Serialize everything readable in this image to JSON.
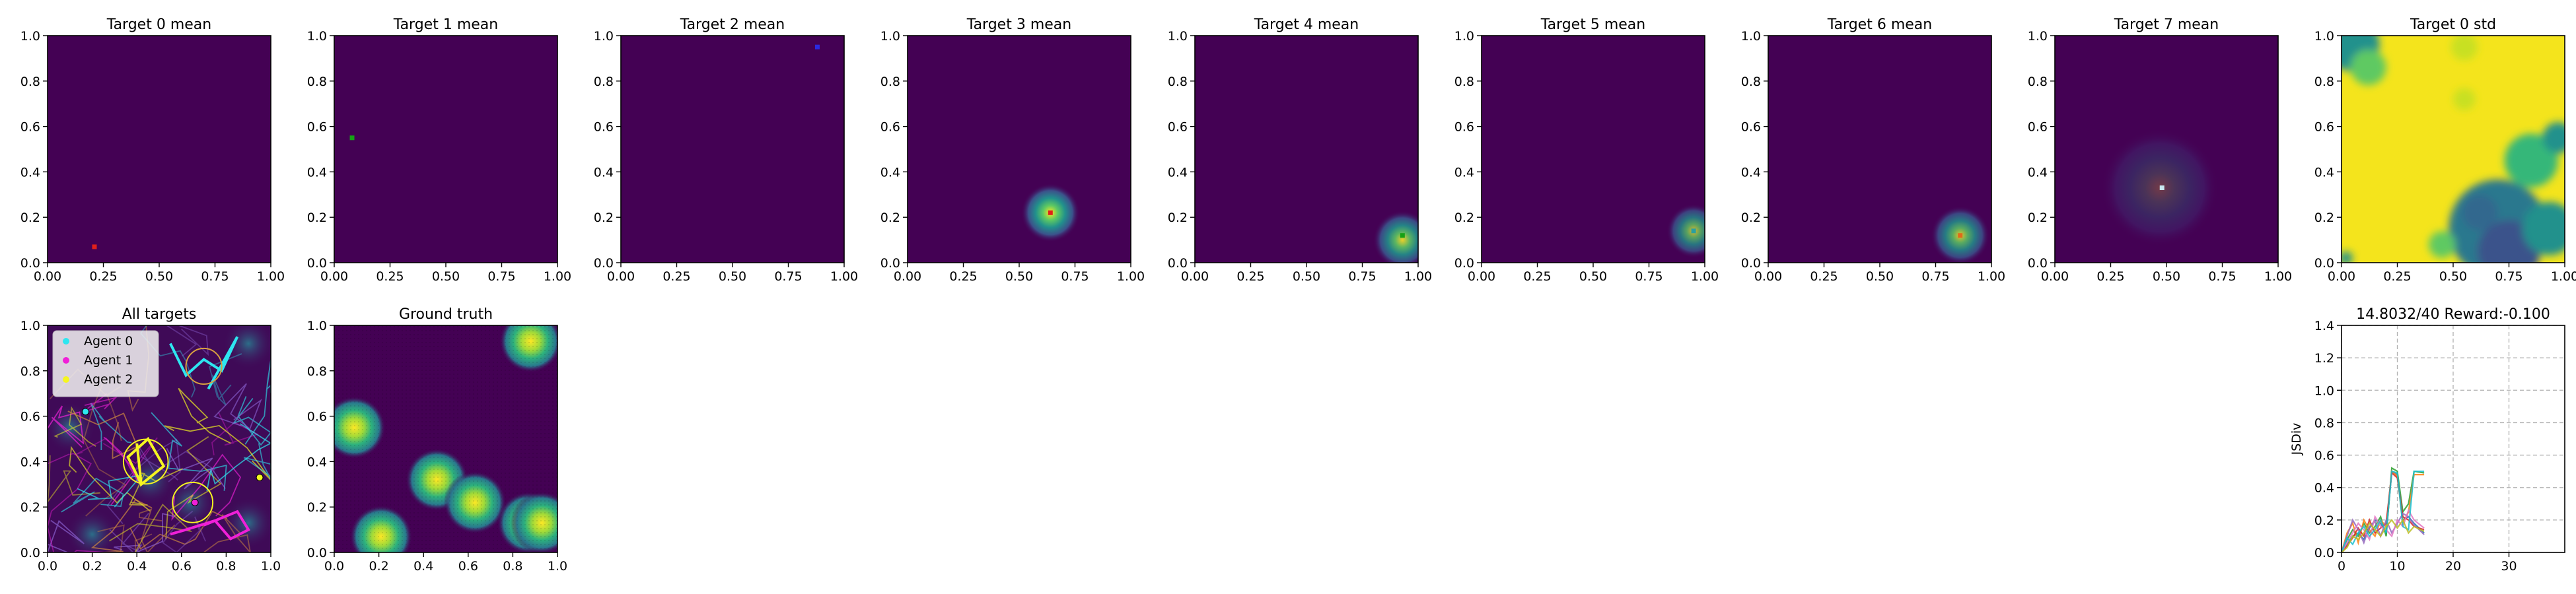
{
  "chart_data": [
    {
      "id": "t0",
      "type": "heatmap",
      "title": "Target 0 mean",
      "peak": null,
      "marker": [
        0.21,
        0.07
      ],
      "marker_color": "#e0201a",
      "xticks": [
        "0.00",
        "0.25",
        "0.50",
        "0.75",
        "1.00"
      ],
      "yticks": [
        "0.0",
        "0.2",
        "0.4",
        "0.6",
        "0.8",
        "1.0"
      ],
      "xlim": [
        0,
        1
      ],
      "ylim": [
        0,
        1
      ]
    },
    {
      "id": "t1",
      "type": "heatmap",
      "title": "Target 1 mean",
      "peak": null,
      "marker": [
        0.08,
        0.55
      ],
      "marker_color": "#16a016",
      "xticks": [
        "0.00",
        "0.25",
        "0.50",
        "0.75",
        "1.00"
      ],
      "yticks": [
        "0.0",
        "0.2",
        "0.4",
        "0.6",
        "0.8",
        "1.0"
      ],
      "xlim": [
        0,
        1
      ],
      "ylim": [
        0,
        1
      ]
    },
    {
      "id": "t2",
      "type": "heatmap",
      "title": "Target 2 mean",
      "peak": null,
      "marker": [
        0.88,
        0.95
      ],
      "marker_color": "#2a2ae0",
      "xticks": [
        "0.00",
        "0.25",
        "0.50",
        "0.75",
        "1.00"
      ],
      "yticks": [
        "0.0",
        "0.2",
        "0.4",
        "0.6",
        "0.8",
        "1.0"
      ],
      "xlim": [
        0,
        1
      ],
      "ylim": [
        0,
        1
      ]
    },
    {
      "id": "t3",
      "type": "heatmap",
      "title": "Target 3 mean",
      "peak": {
        "x": 0.64,
        "y": 0.22,
        "s": 0.06,
        "a": 1.0
      },
      "marker": [
        0.64,
        0.22
      ],
      "marker_color": "#e0201a",
      "xticks": [
        "0.00",
        "0.25",
        "0.50",
        "0.75",
        "1.00"
      ],
      "yticks": [
        "0.0",
        "0.2",
        "0.4",
        "0.6",
        "0.8",
        "1.0"
      ],
      "xlim": [
        0,
        1
      ],
      "ylim": [
        0,
        1
      ]
    },
    {
      "id": "t4",
      "type": "heatmap",
      "title": "Target 4 mean",
      "peak": {
        "x": 0.93,
        "y": 0.1,
        "s": 0.06,
        "a": 0.9
      },
      "marker": [
        0.93,
        0.12
      ],
      "marker_color": "#16a016",
      "xticks": [
        "0.00",
        "0.25",
        "0.50",
        "0.75",
        "1.00"
      ],
      "yticks": [
        "0.0",
        "0.2",
        "0.4",
        "0.6",
        "0.8",
        "1.0"
      ],
      "xlim": [
        0,
        1
      ],
      "ylim": [
        0,
        1
      ]
    },
    {
      "id": "t5",
      "type": "heatmap",
      "title": "Target 5 mean",
      "peak": {
        "x": 0.95,
        "y": 0.14,
        "s": 0.055,
        "a": 0.8
      },
      "marker": [
        0.95,
        0.14
      ],
      "marker_color": "#2aa0a0",
      "xticks": [
        "0.00",
        "0.25",
        "0.50",
        "0.75",
        "1.00"
      ],
      "yticks": [
        "0.0",
        "0.2",
        "0.4",
        "0.6",
        "0.8",
        "1.0"
      ],
      "xlim": [
        0,
        1
      ],
      "ylim": [
        0,
        1
      ]
    },
    {
      "id": "t6",
      "type": "heatmap",
      "title": "Target 6 mean",
      "peak": {
        "x": 0.86,
        "y": 0.12,
        "s": 0.06,
        "a": 0.85
      },
      "marker": [
        0.86,
        0.12
      ],
      "marker_color": "#e06a1a",
      "xticks": [
        "0.00",
        "0.25",
        "0.50",
        "0.75",
        "1.00"
      ],
      "yticks": [
        "0.0",
        "0.2",
        "0.4",
        "0.6",
        "0.8",
        "1.0"
      ],
      "xlim": [
        0,
        1
      ],
      "ylim": [
        0,
        1
      ]
    },
    {
      "id": "t7",
      "type": "heatmap",
      "title": "Target 7 mean",
      "peak": {
        "x": 0.47,
        "y": 0.33,
        "s": 0.12,
        "a": 0.25
      },
      "marker": [
        0.48,
        0.33
      ],
      "marker_color": "#c8e8f0",
      "xticks": [
        "0.00",
        "0.25",
        "0.50",
        "0.75",
        "1.00"
      ],
      "yticks": [
        "0.0",
        "0.2",
        "0.4",
        "0.6",
        "0.8",
        "1.0"
      ],
      "xlim": [
        0,
        1
      ],
      "ylim": [
        0,
        1
      ]
    },
    {
      "id": "std",
      "type": "heatmap",
      "title": "Target 0 std",
      "pattern": "std",
      "xticks": [
        "0.00",
        "0.25",
        "0.50",
        "0.75",
        "1.00"
      ],
      "yticks": [
        "0.0",
        "0.2",
        "0.4",
        "0.6",
        "0.8",
        "1.0"
      ],
      "xlim": [
        0,
        1
      ],
      "ylim": [
        0,
        1
      ]
    },
    {
      "id": "all",
      "type": "heatmap",
      "title": "All targets",
      "pattern": "all",
      "xticks": [
        "0.0",
        "0.2",
        "0.4",
        "0.6",
        "0.8",
        "1.0"
      ],
      "yticks": [
        "0.0",
        "0.2",
        "0.4",
        "0.6",
        "0.8",
        "1.0"
      ],
      "xlim": [
        0,
        1
      ],
      "ylim": [
        0,
        1
      ],
      "legend": [
        {
          "label": "Agent 0",
          "color": "#2ee6f0"
        },
        {
          "label": "Agent 1",
          "color": "#f020d8"
        },
        {
          "label": "Agent 2",
          "color": "#f5f520"
        }
      ],
      "agent_positions": [
        {
          "x": 0.17,
          "y": 0.62,
          "color": "#2ee6f0"
        },
        {
          "x": 0.66,
          "y": 0.22,
          "color": "#f020d8"
        },
        {
          "x": 0.95,
          "y": 0.33,
          "color": "#f5f520"
        }
      ]
    },
    {
      "id": "gt",
      "type": "heatmap",
      "title": "Ground truth",
      "pattern": "gt",
      "xticks": [
        "0.0",
        "0.2",
        "0.4",
        "0.6",
        "0.8",
        "1.0"
      ],
      "yticks": [
        "0.0",
        "0.2",
        "0.4",
        "0.6",
        "0.8",
        "1.0"
      ],
      "xlim": [
        0,
        1
      ],
      "ylim": [
        0,
        1
      ],
      "blobs": [
        {
          "x": 0.09,
          "y": 0.55
        },
        {
          "x": 0.21,
          "y": 0.07
        },
        {
          "x": 0.46,
          "y": 0.32
        },
        {
          "x": 0.63,
          "y": 0.22
        },
        {
          "x": 0.88,
          "y": 0.93
        },
        {
          "x": 0.87,
          "y": 0.13
        },
        {
          "x": 0.93,
          "y": 0.13
        }
      ]
    },
    {
      "id": "line",
      "type": "line",
      "title": "14.8032/40 Reward:-0.100",
      "ylabel": "JSDiv",
      "xlim": [
        0,
        40
      ],
      "ylim": [
        0,
        1.4
      ],
      "xticks": [
        "0",
        "10",
        "20",
        "30"
      ],
      "yticks": [
        "0.0",
        "0.2",
        "0.4",
        "0.6",
        "0.8",
        "1.0",
        "1.2",
        "1.4"
      ],
      "grid": true,
      "series": [
        {
          "color": "#1f77b4",
          "x": [
            0,
            1,
            2,
            3,
            4,
            5,
            6,
            7,
            8,
            9,
            10,
            11,
            12,
            13,
            14.8
          ],
          "y": [
            0,
            0.05,
            0.1,
            0.12,
            0.08,
            0.15,
            0.2,
            0.18,
            0.12,
            0.5,
            0.48,
            0.2,
            0.22,
            0.18,
            0.12
          ]
        },
        {
          "color": "#2ca02c",
          "x": [
            0,
            1,
            2,
            3,
            4,
            5,
            6,
            7,
            8,
            9,
            10,
            11,
            12,
            13,
            14.8
          ],
          "y": [
            0,
            0.08,
            0.14,
            0.1,
            0.18,
            0.12,
            0.16,
            0.22,
            0.1,
            0.52,
            0.5,
            0.25,
            0.3,
            0.5,
            0.49
          ]
        },
        {
          "color": "#ff7f0e",
          "x": [
            0,
            1,
            2,
            3,
            4,
            5,
            6,
            7,
            8,
            9,
            10,
            11,
            12,
            13,
            14.8
          ],
          "y": [
            0,
            0.12,
            0.18,
            0.06,
            0.2,
            0.14,
            0.1,
            0.2,
            0.16,
            0.5,
            0.47,
            0.18,
            0.25,
            0.48,
            0.48
          ]
        },
        {
          "color": "#d62728",
          "x": [
            0,
            1,
            2,
            3,
            4,
            5,
            6,
            7,
            8,
            9,
            10,
            11,
            12,
            13,
            14.8
          ],
          "y": [
            0,
            0.04,
            0.09,
            0.15,
            0.1,
            0.2,
            0.12,
            0.15,
            0.18,
            0.49,
            0.46,
            0.22,
            0.2,
            0.16,
            0.14
          ]
        },
        {
          "color": "#9467bd",
          "x": [
            0,
            1,
            2,
            3,
            4,
            5,
            6,
            7,
            8,
            9,
            10,
            11,
            12,
            13,
            14.8
          ],
          "y": [
            0,
            0.1,
            0.2,
            0.14,
            0.06,
            0.16,
            0.19,
            0.1,
            0.2,
            0.12,
            0.18,
            0.24,
            0.22,
            0.17,
            0.11
          ]
        },
        {
          "color": "#e377c2",
          "x": [
            0,
            1,
            2,
            3,
            4,
            5,
            6,
            7,
            8,
            9,
            10,
            11,
            12,
            13,
            14.8
          ],
          "y": [
            0,
            0.06,
            0.12,
            0.18,
            0.14,
            0.08,
            0.22,
            0.16,
            0.14,
            0.1,
            0.2,
            0.16,
            0.26,
            0.2,
            0.15
          ]
        },
        {
          "color": "#17becf",
          "x": [
            0,
            1,
            2,
            3,
            4,
            5,
            6,
            7,
            8,
            9,
            10,
            11,
            12,
            13,
            14.8
          ],
          "y": [
            0,
            0.09,
            0.05,
            0.12,
            0.16,
            0.1,
            0.14,
            0.2,
            0.12,
            0.5,
            0.49,
            0.16,
            0.14,
            0.5,
            0.5
          ]
        },
        {
          "color": "#bcbd22",
          "x": [
            0,
            1,
            2,
            3,
            4,
            5,
            6,
            7,
            8,
            9,
            10,
            11,
            12,
            13,
            14.8
          ],
          "y": [
            0,
            0.03,
            0.1,
            0.08,
            0.12,
            0.18,
            0.14,
            0.1,
            0.16,
            0.2,
            0.15,
            0.2,
            0.12,
            0.16,
            0.13
          ]
        }
      ]
    }
  ]
}
